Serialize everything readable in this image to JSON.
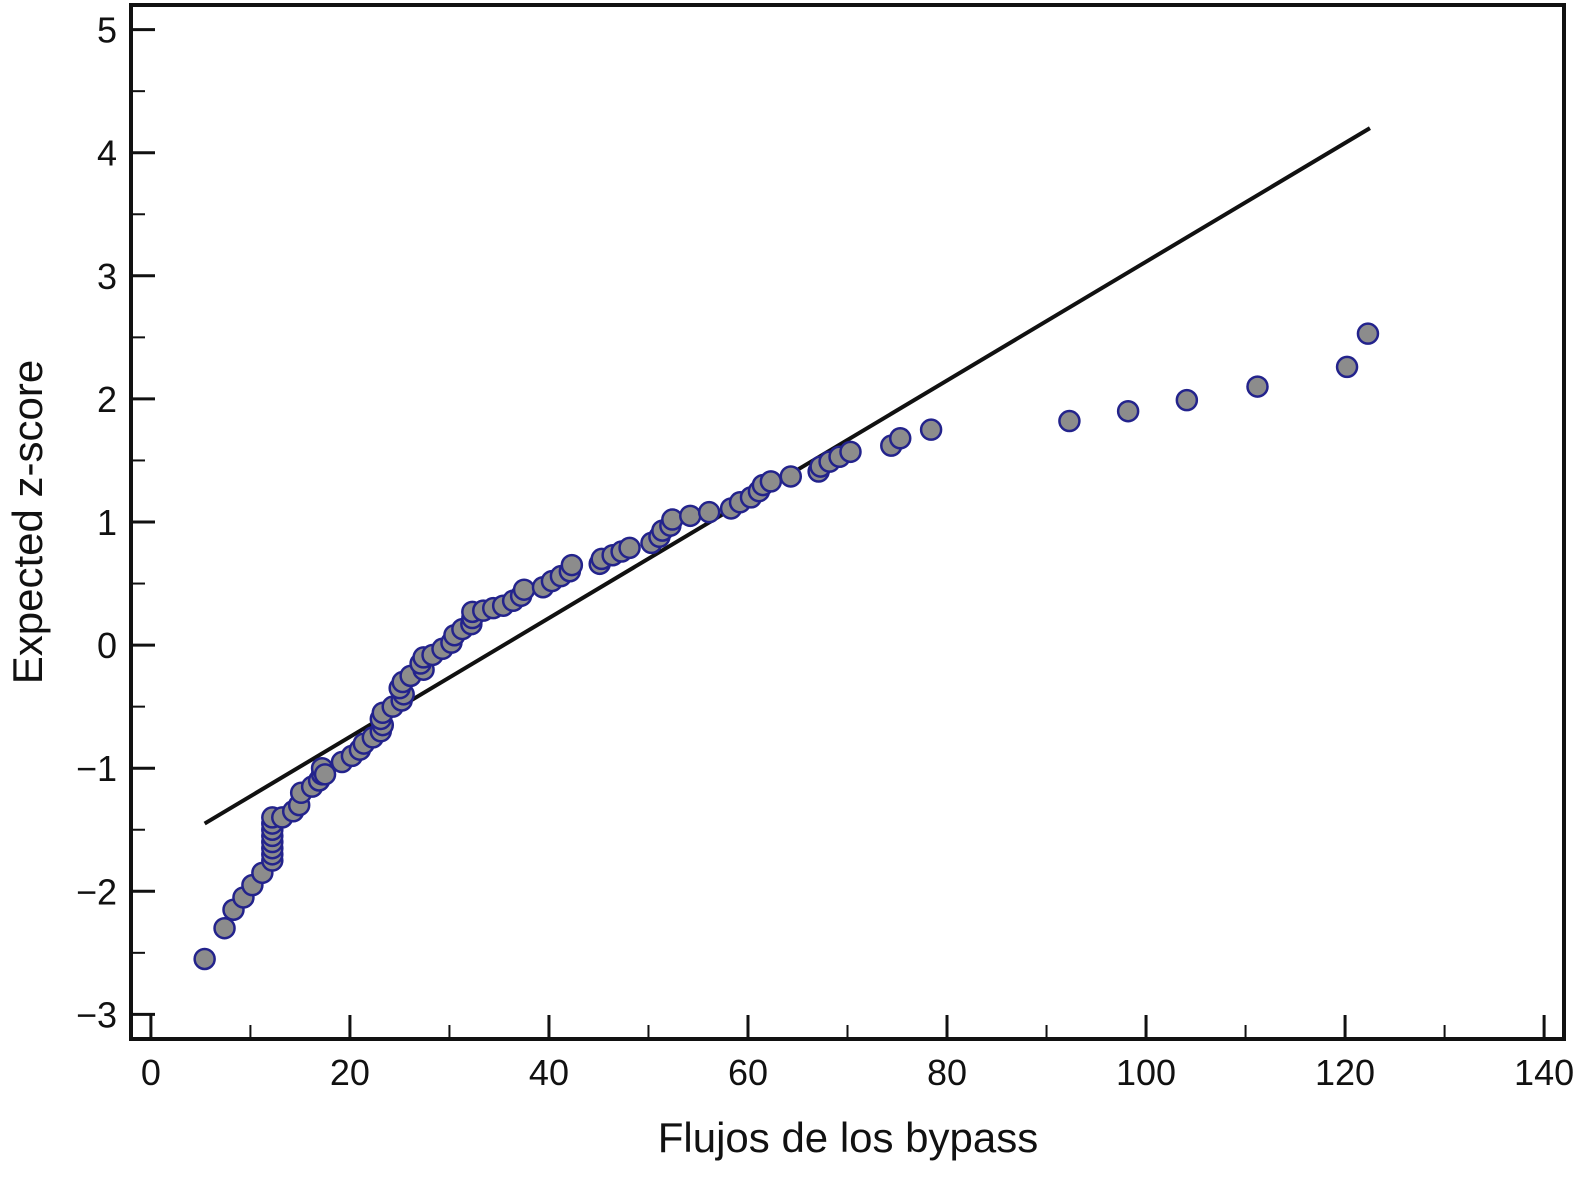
{
  "chart_data": {
    "type": "scatter",
    "title": "",
    "xlabel": "Flujos de los bypass",
    "ylabel": "Expected z-score",
    "xlim": [
      -2,
      142
    ],
    "ylim": [
      -3.2,
      5.2
    ],
    "xticks": [
      0,
      20,
      40,
      60,
      80,
      100,
      120,
      140
    ],
    "xtick_labels": [
      "0",
      "20",
      "40",
      "60",
      "80",
      "100",
      "120",
      "140"
    ],
    "yticks": [
      -3,
      -2,
      -1,
      0,
      1,
      2,
      3,
      4,
      5
    ],
    "ytick_labels": [
      "−3",
      "−2",
      "−1",
      "0",
      "1",
      "2",
      "3",
      "4",
      "5"
    ],
    "grid": false,
    "legend": "none",
    "marker_fill": "#8c8c8c",
    "marker_edge": "#23238c",
    "line_color": "#111111",
    "reference_line": {
      "x": [
        5.4,
        122.5
      ],
      "y": [
        -1.45,
        4.2
      ]
    },
    "points": [
      [
        5.4,
        -2.55
      ],
      [
        7.4,
        -2.3
      ],
      [
        8.3,
        -2.15
      ],
      [
        9.3,
        -2.05
      ],
      [
        10.2,
        -1.95
      ],
      [
        11.2,
        -1.85
      ],
      [
        12.2,
        -1.75
      ],
      [
        12.2,
        -1.7
      ],
      [
        12.2,
        -1.65
      ],
      [
        12.2,
        -1.6
      ],
      [
        12.2,
        -1.55
      ],
      [
        12.2,
        -1.5
      ],
      [
        12.2,
        -1.45
      ],
      [
        12.2,
        -1.4
      ],
      [
        13.2,
        -1.4
      ],
      [
        14.3,
        -1.35
      ],
      [
        14.9,
        -1.3
      ],
      [
        15.1,
        -1.2
      ],
      [
        16.2,
        -1.15
      ],
      [
        16.9,
        -1.1
      ],
      [
        17.2,
        -1.05
      ],
      [
        17.2,
        -1.0
      ],
      [
        17.5,
        -1.05
      ],
      [
        19.2,
        -0.95
      ],
      [
        20.2,
        -0.9
      ],
      [
        21.0,
        -0.85
      ],
      [
        21.4,
        -0.8
      ],
      [
        22.3,
        -0.75
      ],
      [
        23.1,
        -0.7
      ],
      [
        23.3,
        -0.65
      ],
      [
        23.1,
        -0.6
      ],
      [
        23.3,
        -0.55
      ],
      [
        24.3,
        -0.5
      ],
      [
        25.2,
        -0.45
      ],
      [
        25.4,
        -0.4
      ],
      [
        25.0,
        -0.35
      ],
      [
        25.3,
        -0.3
      ],
      [
        26.1,
        -0.25
      ],
      [
        27.4,
        -0.2
      ],
      [
        27.1,
        -0.15
      ],
      [
        27.4,
        -0.1
      ],
      [
        28.3,
        -0.08
      ],
      [
        29.3,
        -0.03
      ],
      [
        30.2,
        0.02
      ],
      [
        30.5,
        0.08
      ],
      [
        31.3,
        0.13
      ],
      [
        32.2,
        0.17
      ],
      [
        32.3,
        0.22
      ],
      [
        32.3,
        0.27
      ],
      [
        33.4,
        0.28
      ],
      [
        34.4,
        0.3
      ],
      [
        35.4,
        0.32
      ],
      [
        36.4,
        0.36
      ],
      [
        37.2,
        0.4
      ],
      [
        37.5,
        0.45
      ],
      [
        39.4,
        0.47
      ],
      [
        40.3,
        0.52
      ],
      [
        41.2,
        0.56
      ],
      [
        42.1,
        0.6
      ],
      [
        42.3,
        0.65
      ],
      [
        45.1,
        0.66
      ],
      [
        45.3,
        0.7
      ],
      [
        46.4,
        0.73
      ],
      [
        47.3,
        0.76
      ],
      [
        48.1,
        0.79
      ],
      [
        50.3,
        0.83
      ],
      [
        51.1,
        0.88
      ],
      [
        51.4,
        0.93
      ],
      [
        52.2,
        0.97
      ],
      [
        52.4,
        1.02
      ],
      [
        54.2,
        1.05
      ],
      [
        56.1,
        1.08
      ],
      [
        58.3,
        1.11
      ],
      [
        59.2,
        1.16
      ],
      [
        60.3,
        1.2
      ],
      [
        61.1,
        1.25
      ],
      [
        61.5,
        1.3
      ],
      [
        62.3,
        1.33
      ],
      [
        64.3,
        1.37
      ],
      [
        67.1,
        1.41
      ],
      [
        67.3,
        1.45
      ],
      [
        68.2,
        1.49
      ],
      [
        69.2,
        1.53
      ],
      [
        70.3,
        1.57
      ],
      [
        74.4,
        1.62
      ],
      [
        75.3,
        1.68
      ],
      [
        78.4,
        1.75
      ],
      [
        92.3,
        1.82
      ],
      [
        98.2,
        1.9
      ],
      [
        104.1,
        1.99
      ],
      [
        111.2,
        2.1
      ],
      [
        120.2,
        2.26
      ],
      [
        122.3,
        2.53
      ]
    ]
  }
}
